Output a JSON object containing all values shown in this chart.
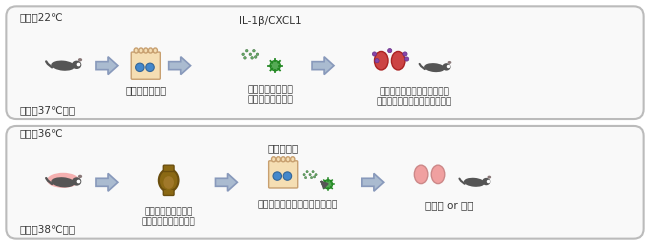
{
  "bg_color": "#ffffff",
  "border_color": "#cccccc",
  "row1": {
    "temp_out": "外気温22℃",
    "temp_body": "体温：37℃前後",
    "step1_label": "ウイルスの増殖",
    "step2_label": "感染局所における\n炎症反応が起こる",
    "step2_top": "IL-1β/CXCL1",
    "step3_label": "好中球の浸潤と肺の組織障害\nによるウイルス性肺炎の重症化",
    "mouse_color": "#555555",
    "mouse_bg": null
  },
  "row2": {
    "temp_out": "外気温36℃",
    "temp_body": "体温：38℃以上",
    "step1_label": "腸内細菌叢の活性化\n（二次胆汁酸の増加）",
    "step2_label": "ウイルス増殖と炎症反応を抑制",
    "step2_top": "二次胆汁酸",
    "step3_label": "無症状 or 軽症",
    "mouse_color": "#555555",
    "mouse_bg": "#f4b8b8"
  },
  "arrow_color": "#6699cc",
  "arrow_edge": "#5588bb"
}
